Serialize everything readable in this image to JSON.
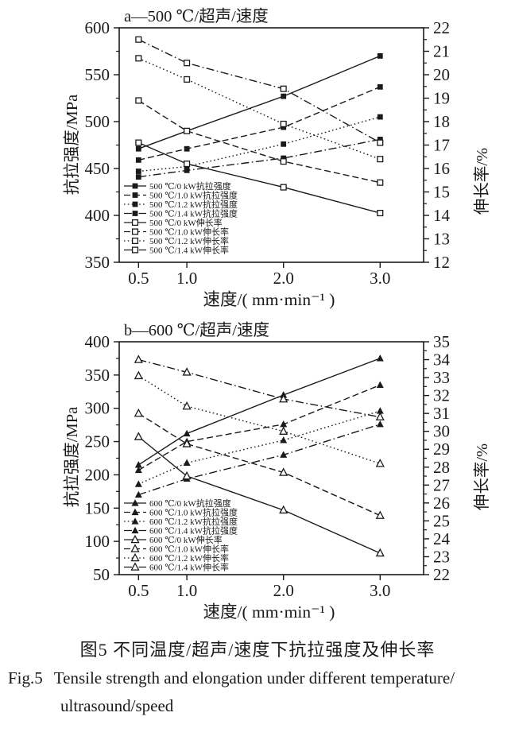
{
  "caption": {
    "zh": "图5 不同温度/超声/速度下抗拉强度及伸长率",
    "en_label": "Fig.5",
    "en_line1": "Tensile strength and elongation under different temperature/",
    "en_line2": "ultrasound/speed"
  },
  "colors": {
    "ink": "#1a1a1a",
    "background": "#ffffff"
  },
  "chart_data": [
    {
      "id": "a",
      "type": "line",
      "title": "a—500 ℃/超声/速度",
      "xlabel": "速度/( mm·min⁻¹ )",
      "ylabel_left": "抗拉强度/MPa",
      "ylabel_right": "伸长率/%",
      "x": [
        0.5,
        1.0,
        2.0,
        3.0
      ],
      "x_tick_labels": [
        "0.5",
        "1.0",
        "2.0",
        "3.0"
      ],
      "x_domain": [
        0.3,
        3.45
      ],
      "left_axis": {
        "min": 350,
        "max": 600,
        "ticks": [
          350,
          400,
          450,
          500,
          550,
          600
        ],
        "minor": true
      },
      "right_axis": {
        "min": 12,
        "max": 22,
        "ticks": [
          12,
          13,
          14,
          15,
          16,
          17,
          18,
          19,
          20,
          21,
          22
        ],
        "minor": true
      },
      "grid": false,
      "legend_position": "inside lower-left",
      "series": [
        {
          "name": "500 ℃/0 kW抗拉强度",
          "axis": "left",
          "marker": "filled-square",
          "line": "solid",
          "values": [
            471,
            490,
            527,
            570
          ]
        },
        {
          "name": "500 ℃/1.0 kW抗拉强度",
          "axis": "left",
          "marker": "filled-square",
          "line": "dashed",
          "values": [
            459,
            471,
            494,
            537
          ]
        },
        {
          "name": "500 ℃/1.2 kW抗拉强度",
          "axis": "left",
          "marker": "filled-square",
          "line": "dotted",
          "values": [
            447,
            452,
            476,
            505
          ]
        },
        {
          "name": "500 ℃/1.4 kW抗拉强度",
          "axis": "left",
          "marker": "filled-square",
          "line": "dashdot",
          "values": [
            441,
            448,
            461,
            481
          ]
        },
        {
          "name": "500 ℃/0 kW伸长率",
          "axis": "right",
          "marker": "open-square",
          "line": "solid",
          "values": [
            17.1,
            16.2,
            15.2,
            14.1
          ]
        },
        {
          "name": "500 ℃/1.0 kW伸长率",
          "axis": "right",
          "marker": "open-square",
          "line": "dashed",
          "values": [
            18.9,
            17.6,
            16.3,
            15.4
          ]
        },
        {
          "name": "500 ℃/1.2 kW伸长率",
          "axis": "right",
          "marker": "open-square",
          "line": "dotted",
          "values": [
            20.7,
            19.8,
            17.9,
            16.4
          ]
        },
        {
          "name": "500 ℃/1.4 kW伸长率",
          "axis": "right",
          "marker": "open-square",
          "line": "dashdot",
          "values": [
            21.5,
            20.5,
            19.4,
            17.1
          ]
        }
      ]
    },
    {
      "id": "b",
      "type": "line",
      "title": "b—600 ℃/超声/速度",
      "xlabel": "速度/( mm·min⁻¹ )",
      "ylabel_left": "抗拉强度/MPa",
      "ylabel_right": "伸长率/%",
      "x": [
        0.5,
        1.0,
        2.0,
        3.0
      ],
      "x_tick_labels": [
        "0.5",
        "1.0",
        "2.0",
        "3.0"
      ],
      "x_domain": [
        0.3,
        3.45
      ],
      "left_axis": {
        "min": 50,
        "max": 400,
        "ticks": [
          50,
          100,
          150,
          200,
          250,
          300,
          350,
          400
        ],
        "minor": true
      },
      "right_axis": {
        "min": 22,
        "max": 35,
        "ticks": [
          22,
          23,
          24,
          25,
          26,
          27,
          28,
          29,
          30,
          31,
          32,
          33,
          34,
          35
        ],
        "minor": true
      },
      "grid": false,
      "legend_position": "inside lower-left",
      "series": [
        {
          "name": "600 ℃/0 kW抗拉强度",
          "axis": "left",
          "marker": "filled-triangle",
          "line": "solid",
          "values": [
            215,
            262,
            320,
            375
          ]
        },
        {
          "name": "600 ℃/1.0 kW抗拉强度",
          "axis": "left",
          "marker": "filled-triangle",
          "line": "dashed",
          "values": [
            207,
            250,
            276,
            335
          ]
        },
        {
          "name": "600 ℃/1.2 kW抗拉强度",
          "axis": "left",
          "marker": "filled-triangle",
          "line": "dotted",
          "values": [
            186,
            218,
            252,
            296
          ]
        },
        {
          "name": "600 ℃/1.4 kW抗拉强度",
          "axis": "left",
          "marker": "filled-triangle",
          "line": "dashdot",
          "values": [
            170,
            194,
            230,
            276
          ]
        },
        {
          "name": "600 ℃/0 kW伸长率",
          "axis": "right",
          "marker": "open-triangle",
          "line": "solid",
          "values": [
            29.7,
            27.5,
            25.6,
            23.2
          ]
        },
        {
          "name": "600 ℃/1.0 kW伸长率",
          "axis": "right",
          "marker": "open-triangle",
          "line": "dashed",
          "values": [
            31.0,
            29.3,
            27.7,
            25.3
          ]
        },
        {
          "name": "600 ℃/1.2 kW伸长率",
          "axis": "right",
          "marker": "open-triangle",
          "line": "dotted",
          "values": [
            33.1,
            31.4,
            30.0,
            28.2
          ]
        },
        {
          "name": "600 ℃/1.4 kW伸长率",
          "axis": "right",
          "marker": "open-triangle",
          "line": "dashdot",
          "values": [
            34.0,
            33.3,
            31.8,
            30.8
          ]
        }
      ]
    }
  ]
}
